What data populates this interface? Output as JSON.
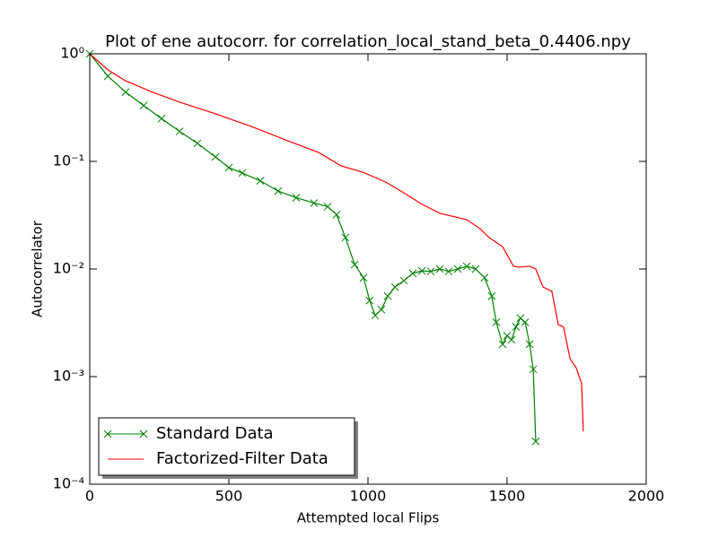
{
  "chart_data": {
    "type": "line",
    "title": "Plot of ene autocorr. for correlation_local_stand_beta_0.4406.npy",
    "x_label": "Attempted local Flips",
    "y_label": "Autocorrelator",
    "xlim": [
      0,
      2000
    ],
    "xticks": [
      0,
      500,
      1000,
      1500,
      2000
    ],
    "ylim": [
      0.0001,
      1
    ],
    "log_y": true,
    "yticks": [
      {
        "value": 1,
        "label": "10⁰"
      },
      {
        "value": 0.1,
        "label": "10⁻¹"
      },
      {
        "value": 0.01,
        "label": "10⁻²"
      },
      {
        "value": 0.001,
        "label": "10⁻³"
      },
      {
        "value": 0.0001,
        "label": "10⁻⁴"
      }
    ],
    "legend": "lower left",
    "series": [
      {
        "name": "Standard Data",
        "color": "#008000",
        "marker": "x",
        "x": [
          0,
          65,
          129,
          194,
          258,
          323,
          387,
          452,
          500,
          548,
          613,
          677,
          742,
          806,
          855,
          887,
          919,
          952,
          984,
          1006,
          1026,
          1048,
          1071,
          1097,
          1129,
          1161,
          1194,
          1226,
          1258,
          1290,
          1323,
          1355,
          1387,
          1419,
          1445,
          1461,
          1484,
          1500,
          1516,
          1532,
          1548,
          1565,
          1581,
          1594,
          1603
        ],
        "values": [
          1.0,
          0.62,
          0.44,
          0.33,
          0.25,
          0.19,
          0.147,
          0.11,
          0.0875,
          0.078,
          0.066,
          0.053,
          0.046,
          0.041,
          0.038,
          0.032,
          0.0196,
          0.011,
          0.0083,
          0.0051,
          0.0037,
          0.0042,
          0.0056,
          0.0068,
          0.0078,
          0.0091,
          0.0096,
          0.0095,
          0.01,
          0.0095,
          0.01,
          0.0106,
          0.01,
          0.0083,
          0.0056,
          0.0032,
          0.002,
          0.0024,
          0.0022,
          0.0029,
          0.0035,
          0.0032,
          0.002,
          0.00117,
          0.00025
        ]
      },
      {
        "name": "Factorized-Filter Data",
        "color": "#ff0000",
        "x": [
          0,
          65,
          129,
          226,
          323,
          452,
          581,
          710,
          823,
          903,
          984,
          1065,
          1129,
          1194,
          1258,
          1355,
          1403,
          1435,
          1484,
          1523,
          1542,
          1581,
          1603,
          1629,
          1661,
          1684,
          1703,
          1726,
          1748,
          1768,
          1774
        ],
        "values": [
          1.0,
          0.71,
          0.56,
          0.44,
          0.355,
          0.277,
          0.211,
          0.156,
          0.121,
          0.091,
          0.079,
          0.064,
          0.051,
          0.04,
          0.033,
          0.0287,
          0.0237,
          0.0196,
          0.0161,
          0.0106,
          0.0104,
          0.0106,
          0.01,
          0.0068,
          0.0062,
          0.00304,
          0.0029,
          0.00147,
          0.00121,
          0.00086,
          0.00031
        ]
      }
    ]
  }
}
